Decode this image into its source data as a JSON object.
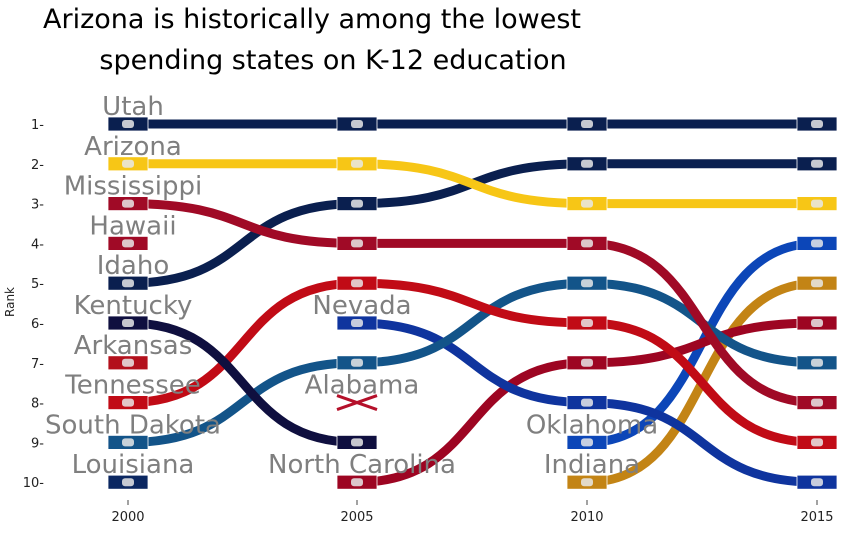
{
  "chart_data": {
    "type": "line",
    "title_lines": [
      "Arizona is historically among the lowest",
      "spending states on K-12 education"
    ],
    "xlabel": "",
    "ylabel": "Rank",
    "x": [
      "2000",
      "2005",
      "2010",
      "2015"
    ],
    "y_ticks": [
      "1",
      "2",
      "3",
      "4",
      "5",
      "6",
      "7",
      "8",
      "9",
      "10"
    ],
    "ylim": [
      1,
      10
    ],
    "y_reversed": true,
    "grid": false,
    "series": [
      {
        "name": "Utah",
        "ranks": [
          1,
          1,
          1,
          1
        ],
        "color": "#0a1f4f"
      },
      {
        "name": "Arizona",
        "ranks": [
          2,
          2,
          3,
          3
        ],
        "color": "#f7c616"
      },
      {
        "name": "Mississippi",
        "ranks": [
          3,
          4,
          4,
          8
        ],
        "color": "#a00a26"
      },
      {
        "name": "Hawaii",
        "ranks": [
          4,
          null,
          null,
          null
        ],
        "color": "#a00a26"
      },
      {
        "name": "Idaho",
        "ranks": [
          5,
          3,
          2,
          2
        ],
        "color": "#0a1f4f"
      },
      {
        "name": "Kentucky",
        "ranks": [
          6,
          9,
          null,
          null
        ],
        "color": "#0f0f3f"
      },
      {
        "name": "Arkansas",
        "ranks": [
          7,
          null,
          null,
          null
        ],
        "color": "#b3101c"
      },
      {
        "name": "Tennessee",
        "ranks": [
          8,
          5,
          6,
          9
        ],
        "color": "#c10b16"
      },
      {
        "name": "South Dakota",
        "ranks": [
          9,
          7,
          5,
          7
        ],
        "color": "#135489"
      },
      {
        "name": "Louisiana",
        "ranks": [
          10,
          null,
          null,
          null
        ],
        "color": "#0b2761"
      },
      {
        "name": "Nevada",
        "ranks": [
          null,
          6,
          8,
          10
        ],
        "color": "#0f349e"
      },
      {
        "name": "Alabama",
        "ranks": [
          null,
          8,
          null,
          null
        ],
        "color": "#9c0a1c"
      },
      {
        "name": "North Carolina",
        "ranks": [
          null,
          10,
          7,
          6
        ],
        "color": "#9d0522"
      },
      {
        "name": "Oklahoma",
        "ranks": [
          null,
          null,
          9,
          4
        ],
        "color": "#0c46b8"
      },
      {
        "name": "Indiana",
        "ranks": [
          null,
          null,
          10,
          5
        ],
        "color": "#c38415"
      }
    ]
  }
}
